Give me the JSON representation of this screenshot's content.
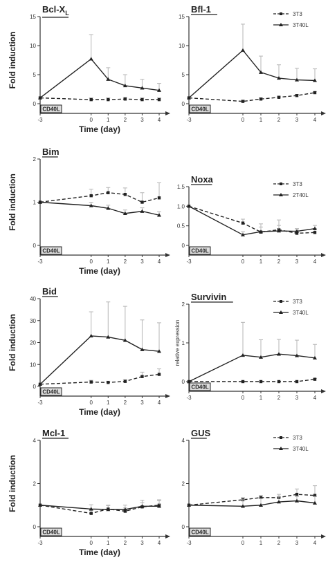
{
  "colors": {
    "ink": "#222222",
    "axis": "#333333",
    "error": "#b5b5b5",
    "box": "#dddddd"
  },
  "chart_data": [
    {
      "type": "line",
      "title": "Bcl-XL",
      "title_main": "Bcl-X",
      "title_sub": "L",
      "ylabel": "Fold induction",
      "xlabel": "Time (day)",
      "x": [
        -3,
        0,
        1,
        2,
        3,
        4
      ],
      "ylim": [
        0,
        15
      ],
      "yticks": [
        0,
        5,
        10,
        15
      ],
      "box_label": "CD40L",
      "series": [
        {
          "name": "3T3",
          "style": "dashed",
          "marker": "square",
          "values": [
            1,
            0.7,
            0.7,
            0.8,
            0.7,
            0.7
          ],
          "errors": [
            0,
            0.3,
            0.3,
            0.3,
            0.3,
            0.3
          ]
        },
        {
          "name": "3T40L",
          "style": "solid",
          "marker": "triangle",
          "values": [
            1,
            7.7,
            4.2,
            3.1,
            2.7,
            2.3
          ],
          "errors": [
            0,
            4.2,
            2.0,
            1.9,
            1.5,
            1.2
          ]
        }
      ]
    },
    {
      "type": "line",
      "title": "Bfl-1",
      "x": [
        -3,
        0,
        1,
        2,
        3,
        4
      ],
      "ylim": [
        0,
        15
      ],
      "yticks": [
        0,
        5,
        10,
        15
      ],
      "box_label": "CD40L",
      "legend": {
        "position": "top-right",
        "entries": [
          "3T3",
          "3T40L"
        ]
      },
      "series": [
        {
          "name": "3T3",
          "style": "dashed",
          "marker": "square",
          "values": [
            1,
            0.4,
            0.8,
            1.1,
            1.4,
            1.9
          ],
          "errors": [
            0,
            0.2,
            0.2,
            0.2,
            0.2,
            0.2
          ]
        },
        {
          "name": "3T40L",
          "style": "solid",
          "marker": "triangle",
          "values": [
            1,
            9.2,
            5.4,
            4.4,
            4.1,
            4.0
          ],
          "errors": [
            0,
            4.5,
            2.8,
            2.3,
            2.0,
            2.0
          ]
        }
      ]
    },
    {
      "type": "line",
      "title": "Bim",
      "ylabel": "Fold induction",
      "xlabel": "Time (day)",
      "x": [
        -3,
        0,
        1,
        2,
        3,
        4
      ],
      "ylim": [
        0,
        2
      ],
      "yticks": [
        0,
        1,
        2
      ],
      "box_label": "CD40L",
      "series": [
        {
          "name": "3T3",
          "style": "dashed",
          "marker": "square",
          "values": [
            1,
            1.15,
            1.22,
            1.18,
            1.0,
            1.1
          ],
          "errors": [
            0,
            0.15,
            0.12,
            0.15,
            0.22,
            0.35
          ]
        },
        {
          "name": "3T40L",
          "style": "solid",
          "marker": "triangle",
          "values": [
            1,
            0.92,
            0.86,
            0.74,
            0.79,
            0.7
          ],
          "errors": [
            0,
            0.08,
            0.07,
            0.08,
            0.08,
            0.08
          ]
        }
      ]
    },
    {
      "type": "line",
      "title": "Noxa",
      "x": [
        -3,
        0,
        1,
        2,
        3,
        4
      ],
      "ylim": [
        0,
        1.5
      ],
      "yticks": [
        0,
        0.5,
        1.0,
        1.5
      ],
      "ytick_labels": [
        "0",
        "0.5",
        "1.0",
        "1.5"
      ],
      "box_label": "CD40L",
      "legend": {
        "position": "top-right",
        "entries": [
          "3T3",
          "2T40L"
        ]
      },
      "series": [
        {
          "name": "3T3",
          "style": "dashed",
          "marker": "square",
          "values": [
            1,
            0.57,
            0.34,
            0.4,
            0.31,
            0.33
          ],
          "errors": [
            0,
            0.1,
            0.13,
            0.11,
            0.08,
            0.1
          ]
        },
        {
          "name": "2T40L",
          "style": "solid",
          "marker": "triangle",
          "values": [
            1,
            0.27,
            0.35,
            0.37,
            0.36,
            0.43
          ],
          "errors": [
            0,
            0.08,
            0.2,
            0.28,
            0.07,
            0.08
          ]
        }
      ]
    },
    {
      "type": "line",
      "title": "Bid",
      "ylabel": "Fold induction",
      "xlabel": "Time (day)",
      "x": [
        -3,
        0,
        1,
        2,
        3,
        4
      ],
      "ylim": [
        0,
        40
      ],
      "yticks": [
        0,
        10,
        20,
        30,
        40
      ],
      "box_label": "CD40L",
      "series": [
        {
          "name": "3T3",
          "style": "dashed",
          "marker": "square",
          "values": [
            1,
            2,
            1.8,
            2.3,
            4.5,
            5.5
          ],
          "errors": [
            0,
            0.8,
            0.6,
            0.8,
            2.0,
            2.5
          ]
        },
        {
          "name": "3T40L",
          "style": "solid",
          "marker": "triangle",
          "values": [
            1,
            23,
            22.5,
            21,
            16.8,
            16
          ],
          "errors": [
            0,
            11,
            16,
            15.5,
            13.5,
            13
          ]
        }
      ]
    },
    {
      "type": "line",
      "title": "Survivin",
      "ylabel": "relative expression",
      "x": [
        -3,
        0,
        1,
        2,
        3,
        4
      ],
      "ylim": [
        0,
        2
      ],
      "yticks": [
        0,
        1,
        2
      ],
      "box_label": "CD40L",
      "legend": {
        "position": "top-right",
        "entries": [
          "3T3",
          "3T40L"
        ]
      },
      "series": [
        {
          "name": "3T3",
          "style": "dashed",
          "marker": "square",
          "values": [
            0,
            0,
            0,
            0,
            0,
            0.06
          ],
          "errors": [
            0,
            0,
            0,
            0,
            0,
            0.02
          ]
        },
        {
          "name": "3T40L",
          "style": "solid",
          "marker": "triangle",
          "values": [
            0,
            0.68,
            0.63,
            0.71,
            0.67,
            0.61
          ],
          "errors": [
            0,
            0.85,
            0.45,
            0.38,
            0.4,
            0.35
          ]
        }
      ]
    },
    {
      "type": "line",
      "title": "Mcl-1",
      "ylabel": "Fold induction",
      "xlabel": "Time (day)",
      "x": [
        -3,
        0,
        1,
        2,
        3,
        4
      ],
      "ylim": [
        0,
        4
      ],
      "yticks": [
        0,
        2,
        4
      ],
      "box_label": "CD40L",
      "series": [
        {
          "name": "3T3",
          "style": "dashed",
          "marker": "square",
          "values": [
            1,
            0.62,
            0.82,
            0.72,
            0.92,
            1.0
          ],
          "errors": [
            0,
            0.18,
            0.18,
            0.15,
            0.2,
            0.25
          ]
        },
        {
          "name": "3T40L",
          "style": "solid",
          "marker": "triangle",
          "values": [
            1,
            0.82,
            0.8,
            0.8,
            0.95,
            0.95
          ],
          "errors": [
            0,
            0.2,
            0.18,
            0.2,
            0.28,
            0.25
          ]
        }
      ]
    },
    {
      "type": "line",
      "title": "GUS",
      "x": [
        -3,
        0,
        1,
        2,
        3,
        4
      ],
      "ylim": [
        0,
        4
      ],
      "yticks": [
        0,
        2,
        4
      ],
      "box_label": "CD40L",
      "legend": {
        "position": "top-right",
        "entries": [
          "3T3",
          "3T40L"
        ]
      },
      "series": [
        {
          "name": "3T3",
          "style": "dashed",
          "marker": "square",
          "values": [
            1,
            1.25,
            1.35,
            1.35,
            1.5,
            1.45
          ],
          "errors": [
            0,
            0.1,
            0.1,
            0.15,
            0.25,
            0.45
          ]
        },
        {
          "name": "3T40L",
          "style": "solid",
          "marker": "triangle",
          "values": [
            1,
            0.95,
            1.0,
            1.15,
            1.2,
            1.1
          ],
          "errors": [
            0,
            0.3,
            0.3,
            0.25,
            0.2,
            0.3
          ]
        }
      ]
    }
  ]
}
